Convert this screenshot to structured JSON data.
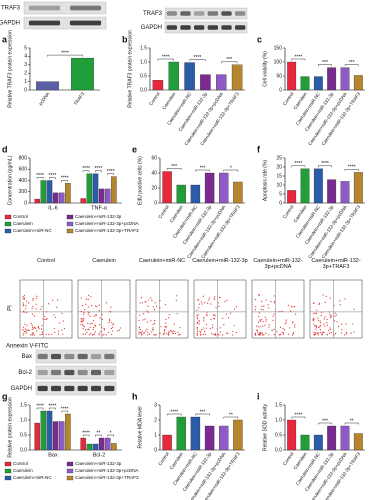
{
  "blots": [
    {
      "rows": [
        "TRAF3",
        "GAPDH"
      ]
    },
    {
      "rows": [
        "TRAF3",
        "GAPDH"
      ]
    },
    {
      "rows": [
        "Bax",
        "Bcl-2",
        "GAPDH"
      ]
    }
  ],
  "flow": {
    "columns": [
      "Control",
      "Caerulein",
      "Caerulein+miR-NC",
      "Caerulein+miR-132-3p",
      "Caerulein+miR-132-3p+pcDNA",
      "Caerulein+miR-132-3p+TRAF3"
    ],
    "y_label": "PI",
    "x_label": "Annexin V-FITC"
  },
  "chart_data": [
    {
      "type": "bar",
      "label": "a",
      "ylabel": "Relative TRAF3 protein expression",
      "categories": [
        "pcDNA",
        "TRAF3"
      ],
      "values": [
        1.0,
        3.8
      ],
      "colors": [
        "#5b5ea6",
        "#1f9e3a"
      ],
      "ylim": [
        0,
        5
      ],
      "yticks": [
        0,
        1,
        2,
        3,
        4,
        5
      ],
      "annotations": [
        "****"
      ]
    },
    {
      "type": "bar",
      "label": "b",
      "ylabel": "Relative TRAF3 protein expression",
      "categories": [
        "Control",
        "Caerulein",
        "Caerulein+miR-NC",
        "Caerulein+miR-132-3p",
        "Caerulein+miR-132-3p+pcDNA",
        "Caerulein+miR-132-3p+TRAF3"
      ],
      "values": [
        0.35,
        1.0,
        0.98,
        0.55,
        0.55,
        0.9
      ],
      "colors": [
        "#e8293b",
        "#1f9e3a",
        "#2a5caa",
        "#7b2a8f",
        "#8e5bc6",
        "#b5862d"
      ],
      "ylim": [
        0,
        1.5
      ],
      "yticks": [
        {
          "value": 0,
          "label": "0.0"
        },
        {
          "value": 0.5,
          "label": "0.5"
        },
        {
          "value": 1,
          "label": "1.0"
        },
        {
          "value": 1.5,
          "label": "1.5"
        }
      ],
      "annotations": [
        "****",
        "****",
        "***"
      ]
    },
    {
      "type": "bar",
      "label": "c",
      "ylabel": "Cell viability (%)",
      "categories": [
        "Control",
        "Caerulein",
        "Caerulein+miR-NC",
        "Caerulein+miR-132-3p",
        "Caerulein+miR-132-3p+pcDNA",
        "Caerulein+miR-132-3p+TRAF3"
      ],
      "values": [
        100,
        48,
        48,
        80,
        80,
        52
      ],
      "colors": [
        "#e8293b",
        "#1f9e3a",
        "#2a5caa",
        "#7b2a8f",
        "#8e5bc6",
        "#b5862d"
      ],
      "ylim": [
        0,
        150
      ],
      "yticks": [
        0,
        50,
        100,
        150
      ],
      "annotations": [
        "****",
        "***",
        "***"
      ]
    },
    {
      "type": "bar",
      "label": "d",
      "ylabel": "Concentration (pg/mL)",
      "categories": [
        "IL-6",
        "TNF-α"
      ],
      "series": [
        {
          "name": "Control",
          "color": "#e8293b",
          "values": [
            70,
            80
          ]
        },
        {
          "name": "Caerulein",
          "color": "#1f9e3a",
          "values": [
            400,
            520
          ]
        },
        {
          "name": "Caerulein+miR-NC",
          "color": "#2a5caa",
          "values": [
            400,
            520
          ]
        },
        {
          "name": "Caerulein+miR-132-3p",
          "color": "#7b2a8f",
          "values": [
            180,
            250
          ]
        },
        {
          "name": "Caerulein+miR-132-3p+pcDNA",
          "color": "#8e5bc6",
          "values": [
            180,
            250
          ]
        },
        {
          "name": "Caerulein+miR-132-3p+TRAF3",
          "color": "#b5862d",
          "values": [
            350,
            470
          ]
        }
      ],
      "ylim": [
        0,
        800
      ],
      "yticks": [
        0,
        200,
        400,
        600,
        800
      ],
      "annotations": [
        "****",
        "****",
        "****",
        "****",
        "****",
        "****"
      ]
    },
    {
      "type": "bar",
      "label": "e",
      "ylabel": "EdU positive cells (%)",
      "categories": [
        "Control",
        "Caerulein",
        "Caerulein+miR-NC",
        "Caerulein+miR-132-3p",
        "Caerulein+miR-132-3p+pcDNA",
        "Caerulein+miR-132-3p+TRAF3"
      ],
      "values": [
        42,
        24,
        24,
        40,
        40,
        28
      ],
      "colors": [
        "#e8293b",
        "#1f9e3a",
        "#2a5caa",
        "#7b2a8f",
        "#8e5bc6",
        "#b5862d"
      ],
      "ylim": [
        0,
        60
      ],
      "yticks": [
        0,
        20,
        40,
        60
      ],
      "annotations": [
        "***",
        "***",
        "*"
      ]
    },
    {
      "type": "bar",
      "label": "f",
      "ylabel": "Apoptosis rate (%)",
      "categories": [
        "Control",
        "Caerulein",
        "Caerulein+miR-NC",
        "Caerulein+miR-132-3p",
        "Caerulein+miR-132-3p+pcDNA",
        "Caerulein+miR-132-3p+TRAF3"
      ],
      "values": [
        7,
        19,
        19,
        13,
        12,
        17
      ],
      "colors": [
        "#e8293b",
        "#1f9e3a",
        "#2a5caa",
        "#7b2a8f",
        "#8e5bc6",
        "#b5862d"
      ],
      "ylim": [
        0,
        25
      ],
      "yticks": [
        0,
        5,
        10,
        15,
        20,
        25
      ],
      "annotations": [
        "****",
        "****",
        "****"
      ]
    },
    {
      "type": "bar",
      "label": "g",
      "ylabel": "Relative protein expression",
      "categories": [
        "Bax",
        "Bcl-2"
      ],
      "series": [
        {
          "name": "Control",
          "color": "#e8293b",
          "values": [
            0.9,
            0.4
          ]
        },
        {
          "name": "Caerulein",
          "color": "#1f9e3a",
          "values": [
            1.3,
            0.2
          ]
        },
        {
          "name": "Caerulein+miR-NC",
          "color": "#2a5caa",
          "values": [
            1.3,
            0.2
          ]
        },
        {
          "name": "Caerulein+miR-132-3p",
          "color": "#7b2a8f",
          "values": [
            0.95,
            0.4
          ]
        },
        {
          "name": "Caerulein+miR-132-3p+pcDNA",
          "color": "#8e5bc6",
          "values": [
            0.95,
            0.4
          ]
        },
        {
          "name": "Caerulein+miR-132-3p+TRAF3",
          "color": "#b5862d",
          "values": [
            1.2,
            0.22
          ]
        }
      ],
      "ylim": [
        0,
        1.5
      ],
      "yticks": [
        {
          "value": 0,
          "label": "0.0"
        },
        {
          "value": 0.5,
          "label": "0.5"
        },
        {
          "value": 1,
          "label": "1.0"
        },
        {
          "value": 1.5,
          "label": "1.5"
        }
      ],
      "annotations": [
        "****",
        "****",
        "****",
        "****",
        "**",
        "*"
      ]
    },
    {
      "type": "bar",
      "label": "h",
      "ylabel": "Relative MDA level",
      "categories": [
        "Control",
        "Caerulein",
        "Caerulein+miR-NC",
        "Caerulein+miR-132-3p",
        "Caerulein+miR-132-3p+pcDNA",
        "Caerulein+miR-132-3p+TRAF3"
      ],
      "values": [
        1.0,
        2.2,
        2.2,
        1.6,
        1.6,
        2.0
      ],
      "colors": [
        "#e8293b",
        "#1f9e3a",
        "#2a5caa",
        "#7b2a8f",
        "#8e5bc6",
        "#b5862d"
      ],
      "ylim": [
        0,
        3
      ],
      "yticks": [
        0,
        1,
        2,
        3
      ],
      "annotations": [
        "****",
        "***",
        "**"
      ]
    },
    {
      "type": "bar",
      "label": "i",
      "ylabel": "Relative SOD activity",
      "categories": [
        "Control",
        "Caerulein",
        "Caerulein+miR-NC",
        "Caerulein+miR-132-3p",
        "Caerulein+miR-132-3p+pcDNA",
        "Caerulein+miR-132-3p+TRAF3"
      ],
      "values": [
        1.0,
        0.5,
        0.5,
        0.8,
        0.8,
        0.55
      ],
      "colors": [
        "#e8293b",
        "#1f9e3a",
        "#2a5caa",
        "#7b2a8f",
        "#8e5bc6",
        "#b5862d"
      ],
      "ylim": [
        0,
        1.5
      ],
      "yticks": [
        {
          "value": 0,
          "label": "0.0"
        },
        {
          "value": 0.5,
          "label": "0.5"
        },
        {
          "value": 1,
          "label": "1.0"
        },
        {
          "value": 1.5,
          "label": "1.5"
        }
      ],
      "annotations": [
        "****",
        "***",
        "**"
      ]
    }
  ]
}
